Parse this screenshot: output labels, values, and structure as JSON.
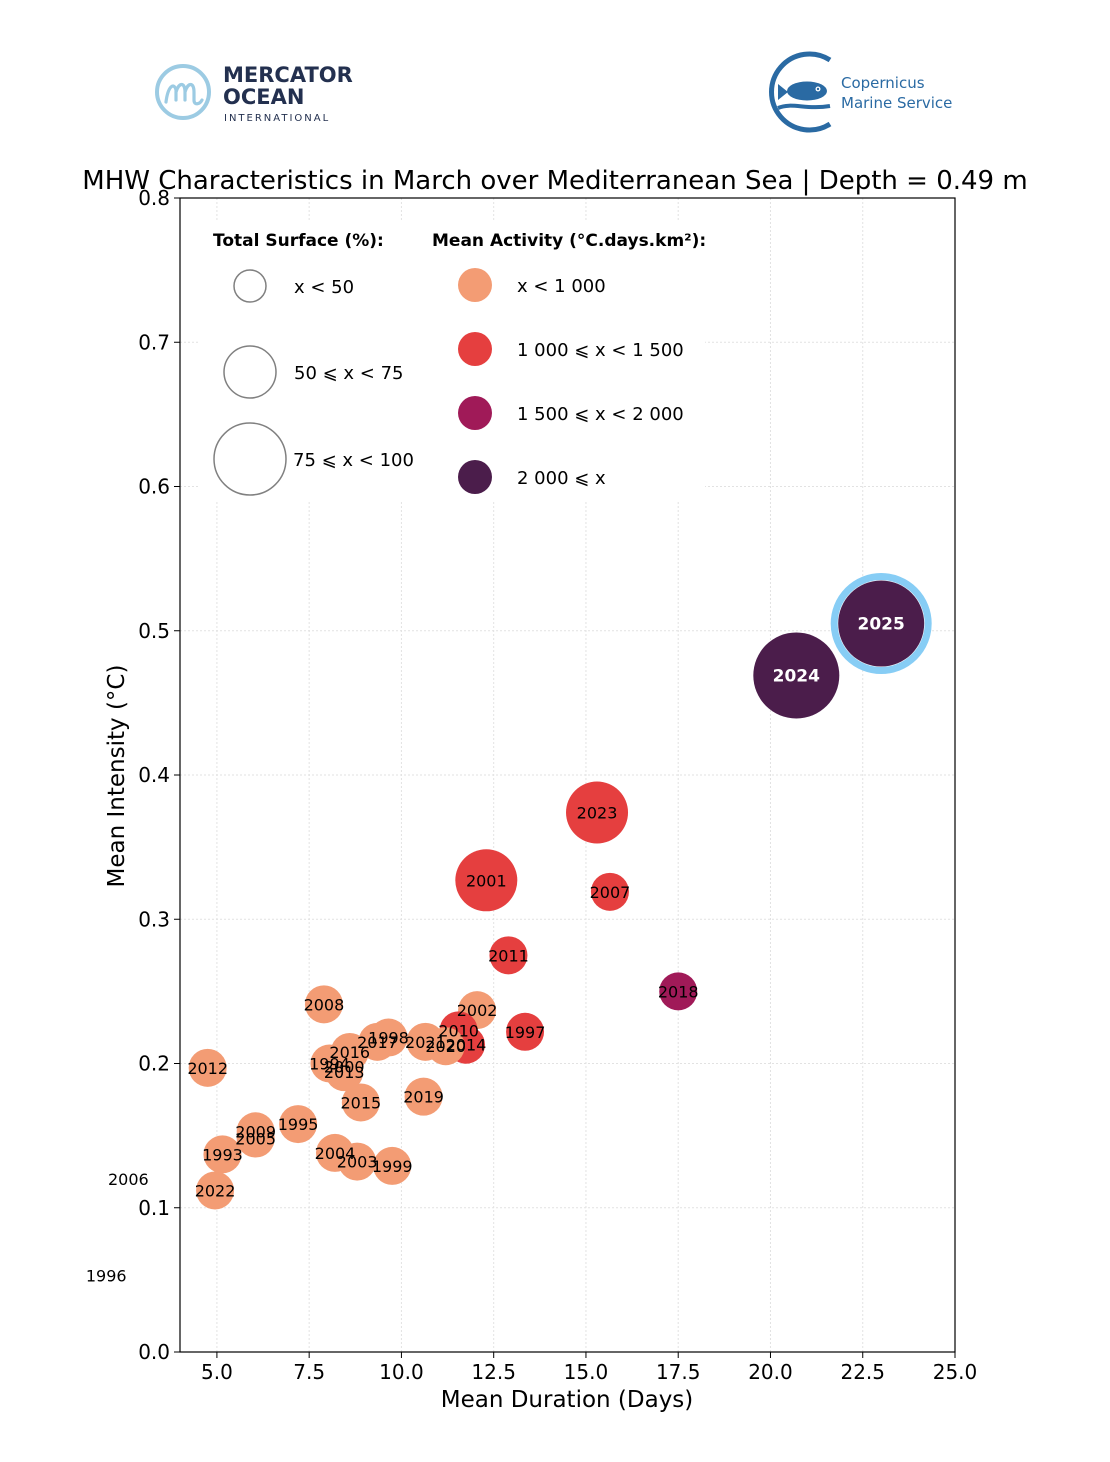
{
  "logos": {
    "left": {
      "line1": "MERCATOR",
      "line2": "OCEAN",
      "line3": "INTERNATIONAL"
    },
    "right": {
      "line1": "Copernicus",
      "line2": "Marine Service"
    }
  },
  "colors": {
    "low": "#f39c74",
    "mid": "#e53f3f",
    "high": "#a01a58",
    "vhigh": "#4b1d4b",
    "highlight_ring": "#87cdf5",
    "logo_blue": "#2a6aa3",
    "logo_light": "#9ccbe3"
  },
  "chart_data": {
    "type": "scatter",
    "title": "MHW Characteristics in March over Mediterranean Sea | Depth = 0.49 m",
    "xlabel": "Mean Duration (Days)",
    "ylabel": "Mean Intensity (°C)",
    "xlim": [
      4.0,
      25.0
    ],
    "ylim": [
      0.0,
      0.8
    ],
    "xticks": [
      "5.0",
      "7.5",
      "10.0",
      "12.5",
      "15.0",
      "17.5",
      "20.0",
      "22.5",
      "25.0"
    ],
    "xtick_values": [
      5.0,
      7.5,
      10.0,
      12.5,
      15.0,
      17.5,
      20.0,
      22.5,
      25.0
    ],
    "yticks": [
      "0.0",
      "0.1",
      "0.2",
      "0.3",
      "0.4",
      "0.5",
      "0.6",
      "0.7",
      "0.8"
    ],
    "ytick_values": [
      0.0,
      0.1,
      0.2,
      0.3,
      0.4,
      0.5,
      0.6,
      0.7,
      0.8
    ],
    "grid": true,
    "legend": {
      "placement": "top-left",
      "size_title": "Total Surface (%):",
      "size_entries": [
        {
          "label": "x < 50",
          "size_class": 0
        },
        {
          "label": "50 ⩽ x < 75",
          "size_class": 1
        },
        {
          "label": "75 ⩽ x < 100",
          "size_class": 2
        }
      ],
      "color_title": "Mean Activity (°C.days.km²):",
      "color_entries": [
        {
          "label": "x < 1 000",
          "color_class": "low"
        },
        {
          "label": "1 000 ⩽ x < 1 500",
          "color_class": "mid"
        },
        {
          "label": "1 500 ⩽ x < 2 000",
          "color_class": "high"
        },
        {
          "label": "2 000 ⩽ x",
          "color_class": "vhigh"
        }
      ]
    },
    "points": [
      {
        "year": "2025",
        "x": 23.0,
        "y": 0.505,
        "size_class": 2,
        "color_class": "vhigh",
        "highlight": true
      },
      {
        "year": "2024",
        "x": 20.7,
        "y": 0.469,
        "size_class": 2,
        "color_class": "vhigh"
      },
      {
        "year": "2023",
        "x": 15.3,
        "y": 0.374,
        "size_class": 1,
        "color_class": "mid"
      },
      {
        "year": "2001",
        "x": 12.3,
        "y": 0.327,
        "size_class": 1,
        "color_class": "mid"
      },
      {
        "year": "2007",
        "x": 15.65,
        "y": 0.319,
        "size_class": 0,
        "color_class": "mid"
      },
      {
        "year": "2011",
        "x": 12.9,
        "y": 0.275,
        "size_class": 0,
        "color_class": "mid"
      },
      {
        "year": "2018",
        "x": 17.5,
        "y": 0.25,
        "size_class": 0,
        "color_class": "high"
      },
      {
        "year": "2008",
        "x": 7.9,
        "y": 0.241,
        "size_class": 0,
        "color_class": "low"
      },
      {
        "year": "2002",
        "x": 12.05,
        "y": 0.237,
        "size_class": 0,
        "color_class": "low"
      },
      {
        "year": "1997",
        "x": 13.35,
        "y": 0.222,
        "size_class": 0,
        "color_class": "mid"
      },
      {
        "year": "2010",
        "x": 11.55,
        "y": 0.223,
        "size_class": 0,
        "color_class": "mid"
      },
      {
        "year": "2014",
        "x": 11.75,
        "y": 0.213,
        "size_class": 0,
        "color_class": "mid"
      },
      {
        "year": "1998",
        "x": 9.65,
        "y": 0.218,
        "size_class": 0,
        "color_class": "low"
      },
      {
        "year": "2017",
        "x": 9.35,
        "y": 0.215,
        "size_class": 0,
        "color_class": "low"
      },
      {
        "year": "2021",
        "x": 10.65,
        "y": 0.215,
        "size_class": 0,
        "color_class": "low"
      },
      {
        "year": "2020",
        "x": 11.2,
        "y": 0.212,
        "size_class": 0,
        "color_class": "low"
      },
      {
        "year": "2016",
        "x": 8.6,
        "y": 0.208,
        "size_class": 0,
        "color_class": "low"
      },
      {
        "year": "1994",
        "x": 8.05,
        "y": 0.2,
        "size_class": 0,
        "color_class": "low"
      },
      {
        "year": "2000",
        "x": 8.45,
        "y": 0.198,
        "size_class": 0,
        "color_class": "low"
      },
      {
        "year": "2013",
        "x": 8.45,
        "y": 0.194,
        "size_class": 0,
        "color_class": "low"
      },
      {
        "year": "2012",
        "x": 4.75,
        "y": 0.197,
        "size_class": 0,
        "color_class": "low"
      },
      {
        "year": "2019",
        "x": 10.6,
        "y": 0.177,
        "size_class": 0,
        "color_class": "low"
      },
      {
        "year": "2015",
        "x": 8.9,
        "y": 0.173,
        "size_class": 0,
        "color_class": "low"
      },
      {
        "year": "1995",
        "x": 7.2,
        "y": 0.158,
        "size_class": 0,
        "color_class": "low"
      },
      {
        "year": "2009",
        "x": 6.05,
        "y": 0.153,
        "size_class": 0,
        "color_class": "low"
      },
      {
        "year": "2005",
        "x": 6.05,
        "y": 0.148,
        "size_class": 0,
        "color_class": "low"
      },
      {
        "year": "2004",
        "x": 8.2,
        "y": 0.138,
        "size_class": 0,
        "color_class": "low"
      },
      {
        "year": "1993",
        "x": 5.15,
        "y": 0.137,
        "size_class": 0,
        "color_class": "low"
      },
      {
        "year": "2003",
        "x": 8.8,
        "y": 0.132,
        "size_class": 0,
        "color_class": "low"
      },
      {
        "year": "1999",
        "x": 9.75,
        "y": 0.129,
        "size_class": 0,
        "color_class": "low"
      },
      {
        "year": "2022",
        "x": 4.95,
        "y": 0.112,
        "size_class": 0,
        "color_class": "low"
      },
      {
        "year": "2006",
        "x": 2.6,
        "y": 0.12,
        "size_class": 0,
        "color_class": "low",
        "outside": true
      },
      {
        "year": "1996",
        "x": 2.0,
        "y": 0.053,
        "size_class": 0,
        "color_class": "low",
        "outside": true
      }
    ]
  }
}
